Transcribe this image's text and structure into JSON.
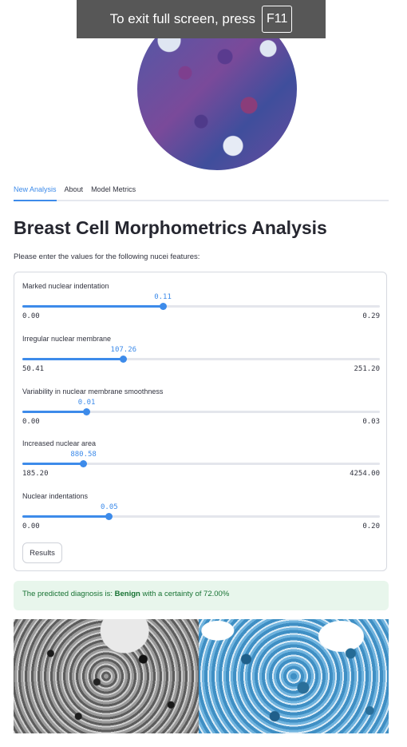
{
  "fullscreen_notice": {
    "text": "To exit full screen, press",
    "key": "F11"
  },
  "tabs": [
    {
      "label": "New Analysis",
      "active": true
    },
    {
      "label": "About",
      "active": false
    },
    {
      "label": "Model Metrics",
      "active": false
    }
  ],
  "title": "Breast Cell Morphometrics Analysis",
  "prompt": "Please enter the values for the following nucei features:",
  "sliders": [
    {
      "label": "Marked nuclear indentation",
      "value": "0.11",
      "min": "0.00",
      "max": "0.29",
      "position": 0.393
    },
    {
      "label": "Irregular nuclear membrane",
      "value": "107.26",
      "min": "50.41",
      "max": "251.20",
      "position": 0.283
    },
    {
      "label": "Variability in nuclear membrane smoothness",
      "value": "0.01",
      "min": "0.00",
      "max": "0.03",
      "position": 0.18
    },
    {
      "label": "Increased nuclear area",
      "value": "880.58",
      "min": "185.20",
      "max": "4254.00",
      "position": 0.171
    },
    {
      "label": "Nuclear indentations",
      "value": "0.05",
      "min": "0.00",
      "max": "0.20",
      "position": 0.243
    }
  ],
  "results_button": "Results",
  "diagnosis": {
    "prefix": "The predicted diagnosis is:",
    "result": "Benign",
    "suffix": "with a certainty of 72.00%"
  },
  "colors": {
    "accent": "#3d8bea",
    "success_bg": "#e8f6ec",
    "success_text": "#177233"
  }
}
